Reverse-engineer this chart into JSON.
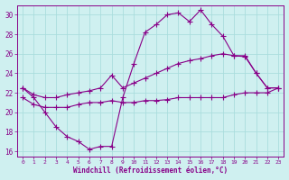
{
  "xlabel": "Windchill (Refroidissement éolien,°C)",
  "bg_color": "#cff0f0",
  "grid_color": "#aadddd",
  "line_color": "#880088",
  "xmin": 0,
  "xmax": 23,
  "ymin": 15.5,
  "ymax": 31.0,
  "yticks": [
    16,
    18,
    20,
    22,
    24,
    26,
    28,
    30
  ],
  "xticks": [
    0,
    1,
    2,
    3,
    4,
    5,
    6,
    7,
    8,
    9,
    10,
    11,
    12,
    13,
    14,
    15,
    16,
    17,
    18,
    19,
    20,
    21,
    22,
    23
  ],
  "line1_x": [
    0,
    1,
    2,
    3,
    4,
    5,
    6,
    7,
    8,
    9,
    10,
    11,
    12,
    13,
    14,
    15,
    16,
    17,
    18,
    19,
    20,
    21,
    22,
    23
  ],
  "line1_y": [
    22.5,
    21.5,
    20.0,
    18.5,
    17.5,
    17.0,
    16.2,
    16.5,
    16.5,
    21.5,
    25.0,
    28.2,
    29.0,
    30.0,
    30.2,
    29.3,
    30.5,
    29.0,
    27.8,
    25.8,
    25.7,
    24.0,
    22.5,
    22.5
  ],
  "line2_x": [
    0,
    1,
    2,
    3,
    4,
    5,
    6,
    7,
    8,
    9,
    10,
    11,
    12,
    13,
    14,
    15,
    16,
    17,
    18,
    19,
    20,
    21,
    22,
    23
  ],
  "line2_y": [
    22.5,
    21.8,
    21.5,
    21.5,
    21.8,
    22.0,
    22.2,
    22.5,
    23.8,
    22.5,
    23.0,
    23.5,
    24.0,
    24.5,
    25.0,
    25.3,
    25.5,
    25.8,
    26.0,
    25.8,
    25.8,
    24.0,
    22.5,
    22.5
  ],
  "line3_x": [
    0,
    1,
    2,
    3,
    4,
    5,
    6,
    7,
    8,
    9,
    10,
    11,
    12,
    13,
    14,
    15,
    16,
    17,
    18,
    19,
    20,
    21,
    22,
    23
  ],
  "line3_y": [
    21.5,
    20.8,
    20.5,
    20.5,
    20.5,
    20.8,
    21.0,
    21.0,
    21.2,
    21.0,
    21.0,
    21.2,
    21.2,
    21.3,
    21.5,
    21.5,
    21.5,
    21.5,
    21.5,
    21.8,
    22.0,
    22.0,
    22.0,
    22.5
  ]
}
